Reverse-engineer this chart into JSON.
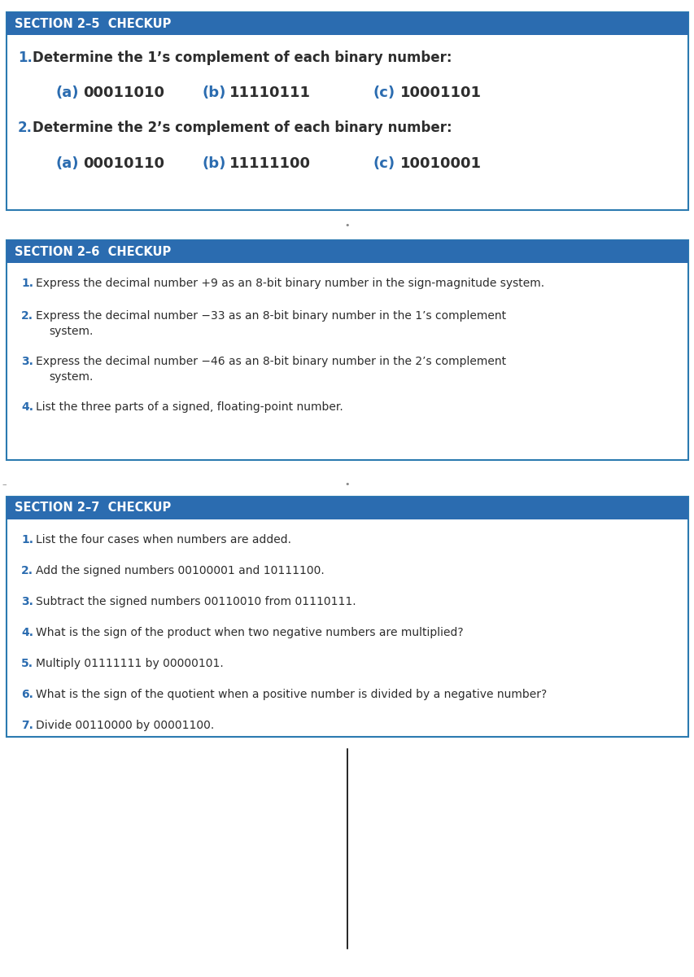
{
  "bg_color": "#ffffff",
  "header_bg": "#2B6CB0",
  "header_text_color": "#ffffff",
  "box_border_color": "#2B7AB0",
  "box_bg": "#ffffff",
  "number_color": "#2B6CB0",
  "text_color": "#2d2d2d",
  "section25": {
    "title": "SECTION 2–5  CHECKUP",
    "q1_main": "Determine the 1’s complement of each binary number:",
    "q1_labels": [
      "(a)",
      "(b)",
      "(c)"
    ],
    "q1_values": [
      "00011010",
      "11110111",
      "10001101"
    ],
    "q2_main": "Determine the 2’s complement of each binary number:",
    "q2_labels": [
      "(a)",
      "(b)",
      "(c)"
    ],
    "q2_values": [
      "00010110",
      "11111100",
      "10010001"
    ]
  },
  "section26": {
    "title": "SECTION 2–6  CHECKUP",
    "questions": [
      [
        "Express the decimal number +9 as an 8-bit binary number in the sign-magnitude system."
      ],
      [
        "Express the decimal number −33 as an 8-bit binary number in the 1’s complement",
        "system."
      ],
      [
        "Express the decimal number −46 as an 8-bit binary number in the 2’s complement",
        "system."
      ],
      [
        "List the three parts of a signed, floating-point number."
      ]
    ]
  },
  "section27": {
    "title": "SECTION 2–7  CHECKUP",
    "questions": [
      [
        "List the four cases when numbers are added."
      ],
      [
        "Add the signed numbers 00100001 and 10111100."
      ],
      [
        "Subtract the signed numbers 00110010 from 01110111."
      ],
      [
        "What is the sign of the product when two negative numbers are multiplied?"
      ],
      [
        "Multiply 01111111 by 00000101."
      ],
      [
        "What is the sign of the quotient when a positive number is divided by a negative number?"
      ],
      [
        "Divide 00110000 by 00001100."
      ]
    ]
  }
}
